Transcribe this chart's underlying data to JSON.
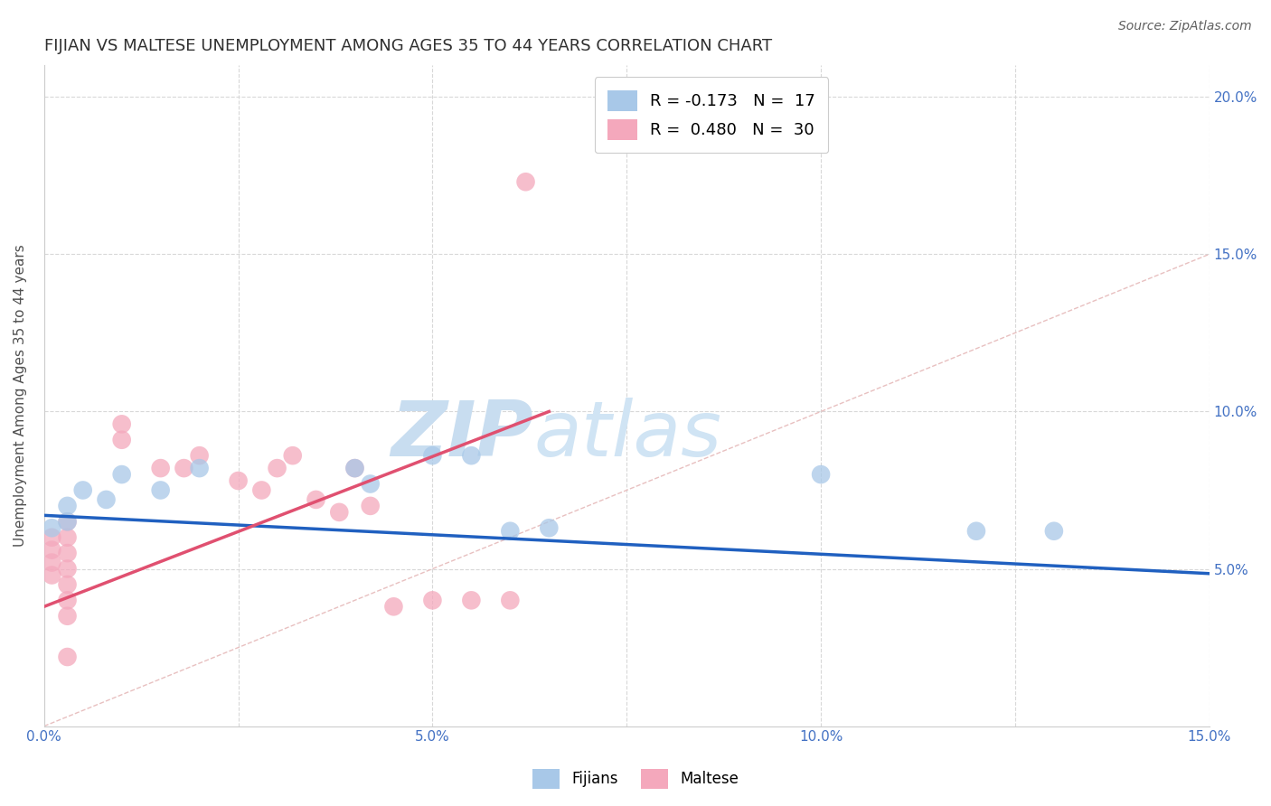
{
  "title": "FIJIAN VS MALTESE UNEMPLOYMENT AMONG AGES 35 TO 44 YEARS CORRELATION CHART",
  "source": "Source: ZipAtlas.com",
  "xlabel": "",
  "ylabel": "Unemployment Among Ages 35 to 44 years",
  "xlim": [
    0.0,
    0.15
  ],
  "ylim": [
    0.0,
    0.21
  ],
  "xticks": [
    0.0,
    0.025,
    0.05,
    0.075,
    0.1,
    0.125,
    0.15
  ],
  "xtick_labels": [
    "0.0%",
    "",
    "5.0%",
    "",
    "10.0%",
    "",
    "15.0%"
  ],
  "yticks": [
    0.0,
    0.05,
    0.1,
    0.15,
    0.2
  ],
  "ytick_labels": [
    "",
    "5.0%",
    "10.0%",
    "15.0%",
    "20.0%"
  ],
  "fijian_color": "#a8c8e8",
  "maltese_color": "#f4a8bc",
  "fijian_line_color": "#2060c0",
  "maltese_line_color": "#e05070",
  "diagonal_color": "#e8c0c0",
  "grid_color": "#d8d8d8",
  "fijian_R": -0.173,
  "fijian_N": 17,
  "maltese_R": 0.48,
  "maltese_N": 30,
  "fijian_points": [
    [
      0.001,
      0.063
    ],
    [
      0.003,
      0.07
    ],
    [
      0.003,
      0.065
    ],
    [
      0.005,
      0.075
    ],
    [
      0.008,
      0.072
    ],
    [
      0.01,
      0.08
    ],
    [
      0.015,
      0.075
    ],
    [
      0.02,
      0.082
    ],
    [
      0.04,
      0.082
    ],
    [
      0.042,
      0.077
    ],
    [
      0.05,
      0.086
    ],
    [
      0.055,
      0.086
    ],
    [
      0.06,
      0.062
    ],
    [
      0.065,
      0.063
    ],
    [
      0.1,
      0.08
    ],
    [
      0.12,
      0.062
    ],
    [
      0.13,
      0.062
    ]
  ],
  "maltese_points": [
    [
      0.001,
      0.06
    ],
    [
      0.001,
      0.056
    ],
    [
      0.001,
      0.052
    ],
    [
      0.001,
      0.048
    ],
    [
      0.003,
      0.065
    ],
    [
      0.003,
      0.06
    ],
    [
      0.003,
      0.055
    ],
    [
      0.003,
      0.05
    ],
    [
      0.003,
      0.045
    ],
    [
      0.003,
      0.04
    ],
    [
      0.003,
      0.035
    ],
    [
      0.003,
      0.022
    ],
    [
      0.01,
      0.096
    ],
    [
      0.01,
      0.091
    ],
    [
      0.015,
      0.082
    ],
    [
      0.018,
      0.082
    ],
    [
      0.02,
      0.086
    ],
    [
      0.025,
      0.078
    ],
    [
      0.028,
      0.075
    ],
    [
      0.03,
      0.082
    ],
    [
      0.032,
      0.086
    ],
    [
      0.035,
      0.072
    ],
    [
      0.038,
      0.068
    ],
    [
      0.04,
      0.082
    ],
    [
      0.042,
      0.07
    ],
    [
      0.045,
      0.038
    ],
    [
      0.05,
      0.04
    ],
    [
      0.055,
      0.04
    ],
    [
      0.06,
      0.04
    ],
    [
      0.062,
      0.173
    ]
  ],
  "fijian_trendline": [
    [
      0.0,
      0.067
    ],
    [
      0.15,
      0.0485
    ]
  ],
  "maltese_trendline": [
    [
      0.0,
      0.038
    ],
    [
      0.065,
      0.1
    ]
  ],
  "watermark_zip": "ZIP",
  "watermark_atlas": "atlas",
  "watermark_color": "#c8ddf0",
  "background_color": "#ffffff",
  "title_color": "#303030",
  "tick_label_color": "#4472c4",
  "legend_fijian_label": "R = -0.173   N =  17",
  "legend_maltese_label": "R =  0.480   N =  30"
}
